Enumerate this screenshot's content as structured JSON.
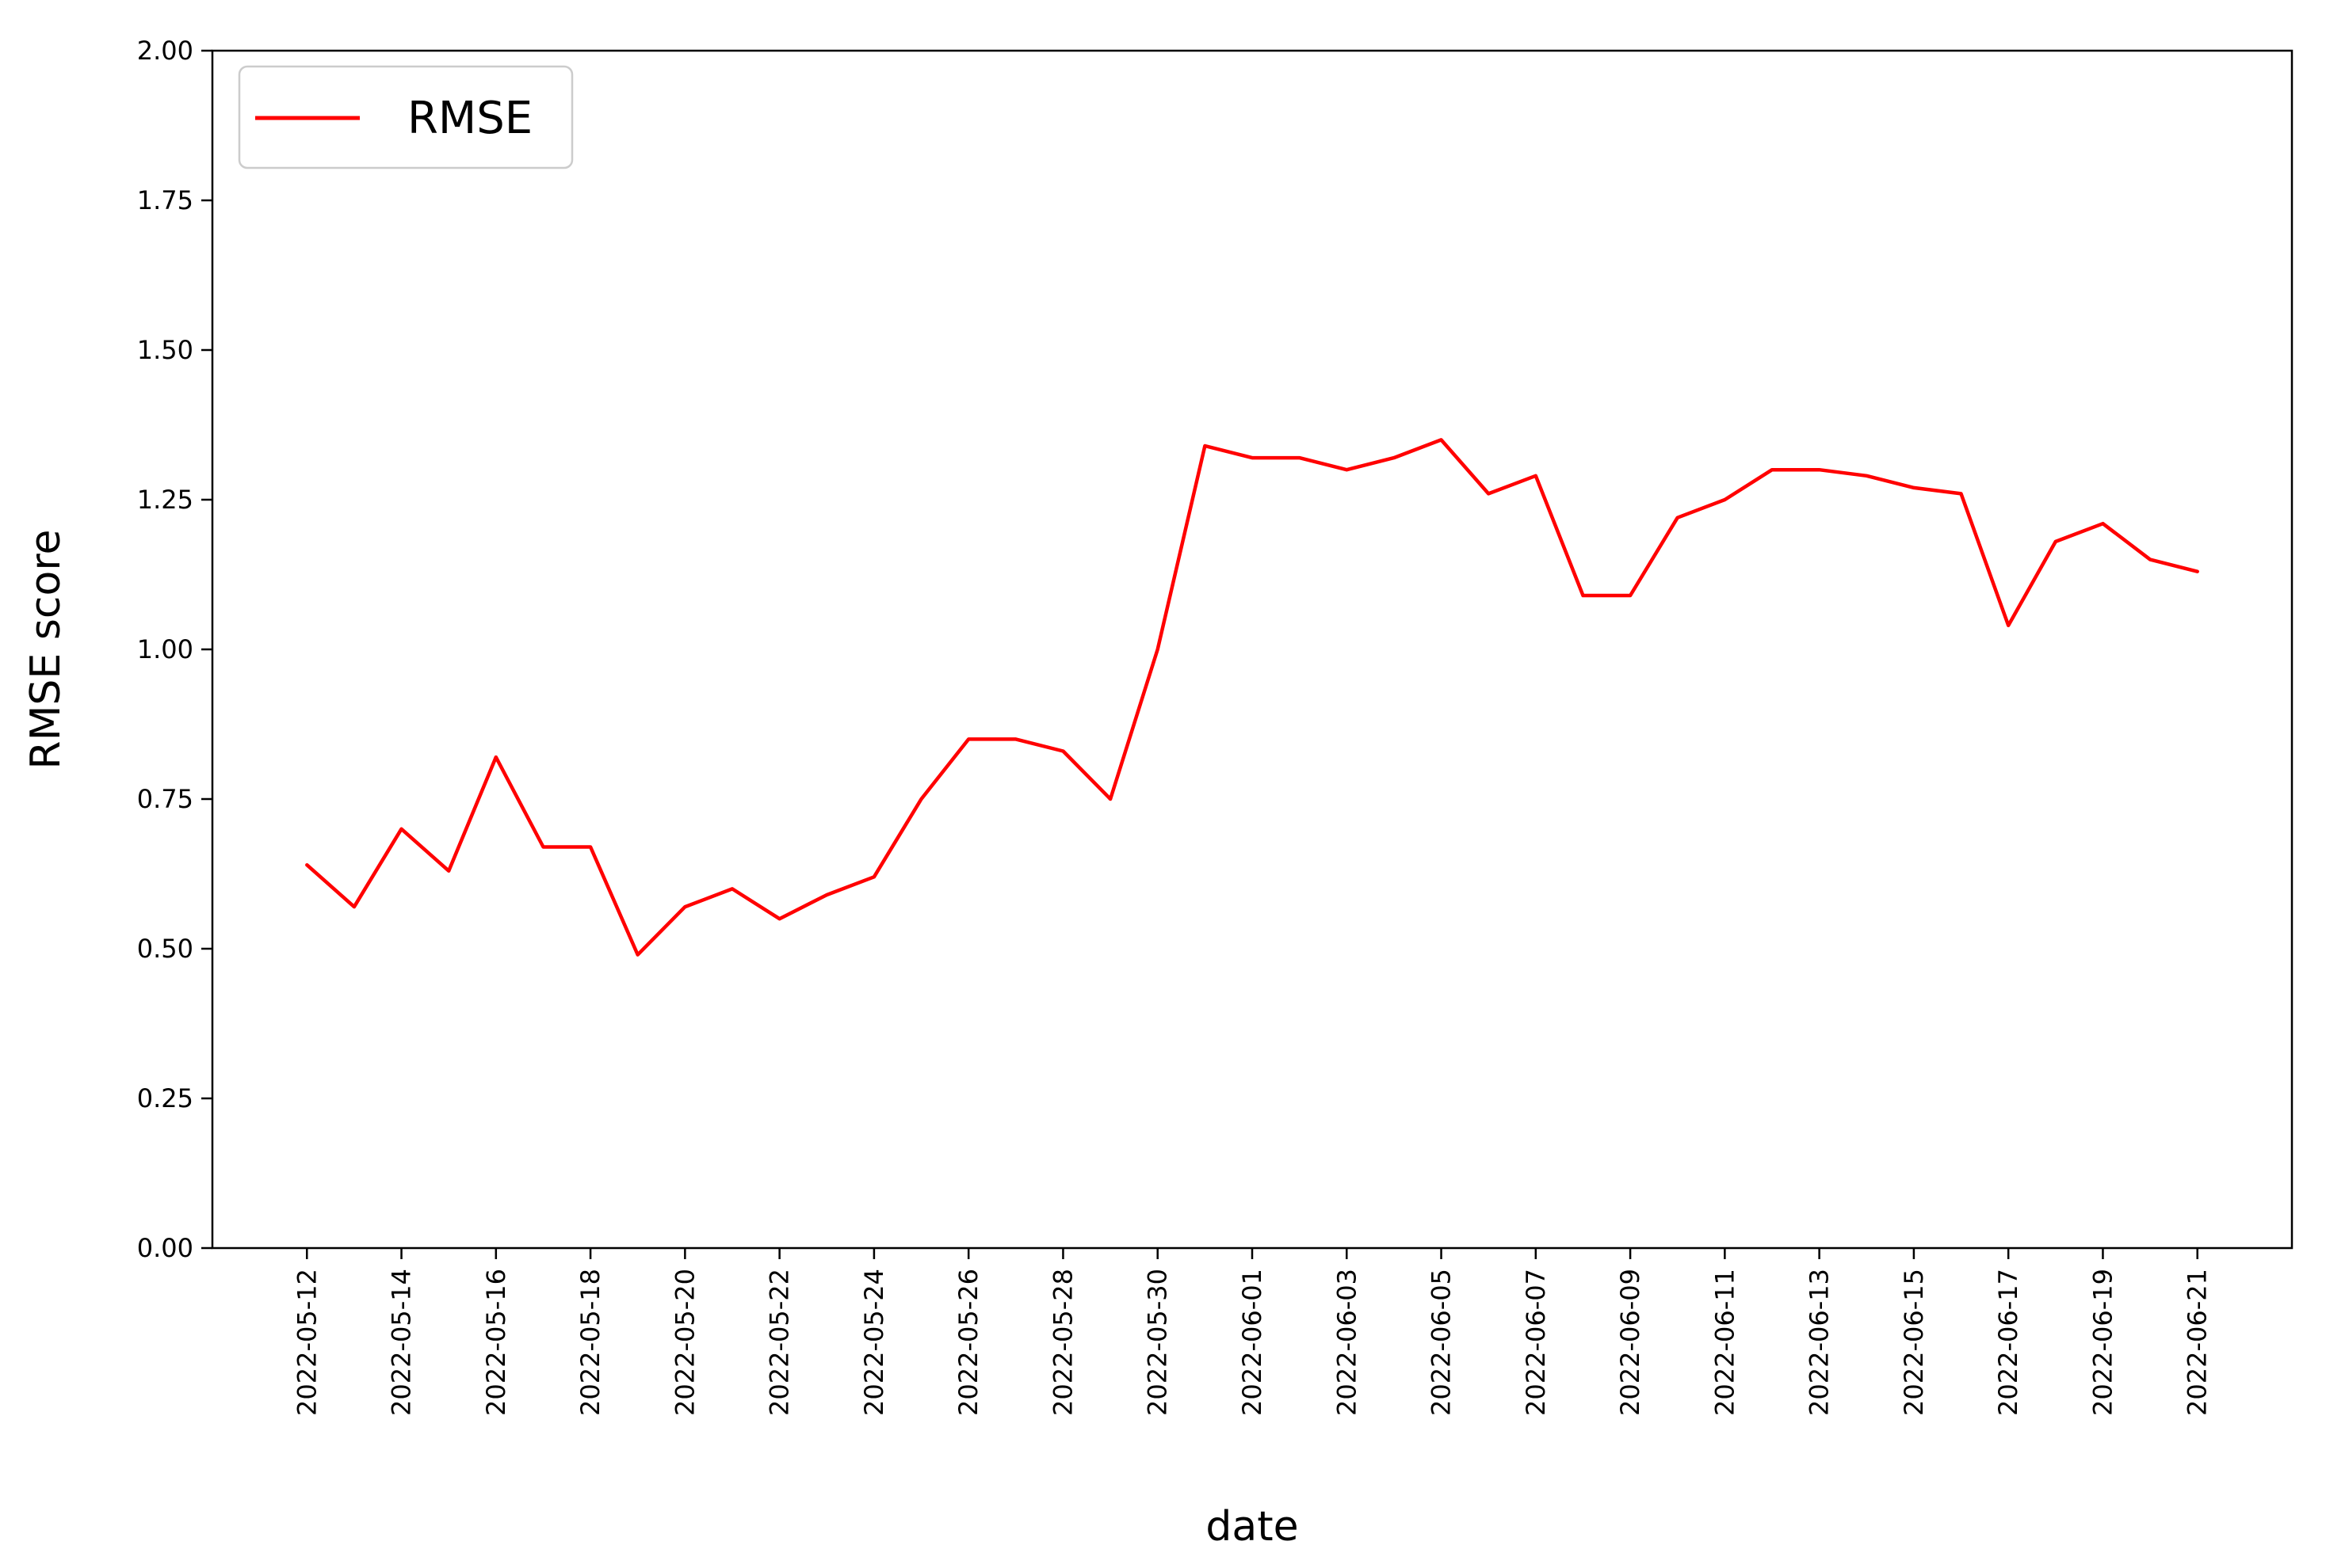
{
  "chart_data": {
    "type": "line",
    "title": "",
    "xlabel": "date",
    "ylabel": "RMSE score",
    "ylim": [
      0,
      2
    ],
    "xlim": [
      "2022-05-10",
      "2022-06-23"
    ],
    "grid": false,
    "legend_position": "top-left",
    "y_ticks": [
      "0.00",
      "0.25",
      "0.50",
      "0.75",
      "1.00",
      "1.25",
      "1.50",
      "1.75",
      "2.00"
    ],
    "x_ticks": [
      "2022-05-12",
      "2022-05-14",
      "2022-05-16",
      "2022-05-18",
      "2022-05-20",
      "2022-05-22",
      "2022-05-24",
      "2022-05-26",
      "2022-05-28",
      "2022-05-30",
      "2022-06-01",
      "2022-06-03",
      "2022-06-05",
      "2022-06-07",
      "2022-06-09",
      "2022-06-11",
      "2022-06-13",
      "2022-06-15",
      "2022-06-17",
      "2022-06-19",
      "2022-06-21"
    ],
    "series": [
      {
        "name": "RMSE",
        "color": "#ff0000",
        "x": [
          "2022-05-12",
          "2022-05-13",
          "2022-05-14",
          "2022-05-15",
          "2022-05-16",
          "2022-05-17",
          "2022-05-18",
          "2022-05-19",
          "2022-05-20",
          "2022-05-21",
          "2022-05-22",
          "2022-05-23",
          "2022-05-24",
          "2022-05-25",
          "2022-05-26",
          "2022-05-27",
          "2022-05-28",
          "2022-05-29",
          "2022-05-30",
          "2022-05-31",
          "2022-06-01",
          "2022-06-02",
          "2022-06-03",
          "2022-06-04",
          "2022-06-05",
          "2022-06-06",
          "2022-06-07",
          "2022-06-08",
          "2022-06-09",
          "2022-06-10",
          "2022-06-11",
          "2022-06-12",
          "2022-06-13",
          "2022-06-14",
          "2022-06-15",
          "2022-06-16",
          "2022-06-17",
          "2022-06-18",
          "2022-06-19",
          "2022-06-20",
          "2022-06-21"
        ],
        "y": [
          0.64,
          0.57,
          0.7,
          0.63,
          0.82,
          0.67,
          0.67,
          0.49,
          0.57,
          0.6,
          0.55,
          0.59,
          0.62,
          0.75,
          0.85,
          0.85,
          0.83,
          0.75,
          1.0,
          1.34,
          1.32,
          1.32,
          1.3,
          1.32,
          1.35,
          1.26,
          1.29,
          1.09,
          1.09,
          1.22,
          1.25,
          1.3,
          1.3,
          1.29,
          1.27,
          1.26,
          1.04,
          1.18,
          1.21,
          1.15,
          1.13
        ]
      }
    ]
  }
}
